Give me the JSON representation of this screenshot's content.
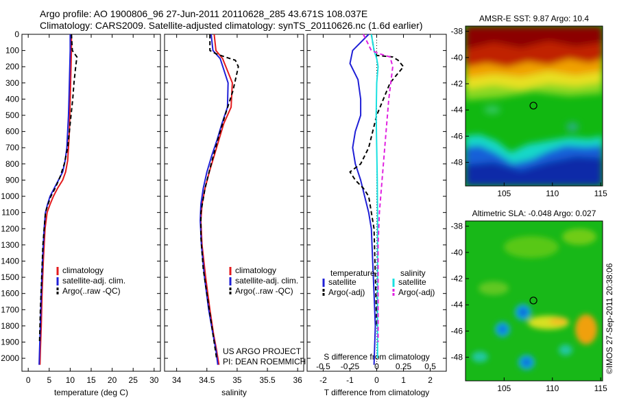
{
  "header": {
    "line1": "Argo profile: AO 1900806_96 27-Jun-2011 20110628_285 43.671S 108.037E",
    "line2": "Climatology: CARS2009. Satellite-adjusted climatology: synTS_20110626.nc (1.6d earlier)"
  },
  "footer": {
    "project": "US ARGO PROJECT",
    "pi": "PI: DEAN ROEMMICH",
    "credit": "©IMOS 27-Sep-2011 20:38:06"
  },
  "colors": {
    "climatology": "#e31a1c",
    "satellite": "#1f1fd6",
    "argo": "#000000",
    "salinity_satellite": "#18e0e0",
    "salinity_argo": "#e020e0"
  },
  "chart_data": [
    {
      "id": "temperature",
      "type": "line",
      "xlabel": "temperature (deg C)",
      "ylabel": "",
      "xlim": [
        -1.5,
        31.5
      ],
      "ylim": [
        2080,
        0
      ],
      "xticks": [
        0,
        5,
        10,
        15,
        20,
        25,
        30
      ],
      "yticks": [
        0,
        100,
        200,
        300,
        400,
        500,
        600,
        700,
        800,
        900,
        1000,
        1100,
        1200,
        1300,
        1400,
        1500,
        1600,
        1700,
        1800,
        1900,
        2000
      ],
      "legend": [
        "climatology",
        "satellite-adj. clim.",
        "Argo(..raw -QC)"
      ],
      "series": [
        {
          "name": "climatology",
          "style": "solid",
          "color": "#e31a1c",
          "x": [
            10.3,
            10.3,
            10.2,
            10.1,
            10.0,
            9.9,
            9.8,
            9.6,
            9.4,
            8.9,
            8.2,
            7.0,
            6.0,
            5.2,
            4.5,
            4.0,
            3.6,
            3.3,
            3.1,
            2.9,
            2.8
          ],
          "y": [
            0,
            100,
            200,
            300,
            400,
            500,
            600,
            700,
            780,
            850,
            900,
            950,
            1000,
            1050,
            1100,
            1200,
            1400,
            1600,
            1800,
            1950,
            2040
          ]
        },
        {
          "name": "satellite-adj. clim.",
          "style": "solid",
          "color": "#1f1fd6",
          "x": [
            10.0,
            10.0,
            9.9,
            9.8,
            9.7,
            9.6,
            9.4,
            9.2,
            8.8,
            8.2,
            7.2,
            6.2,
            5.2,
            4.6,
            4.1,
            3.8,
            3.4,
            3.1,
            2.9,
            2.7,
            2.6
          ],
          "y": [
            0,
            100,
            200,
            300,
            400,
            500,
            600,
            700,
            780,
            850,
            900,
            950,
            1000,
            1050,
            1100,
            1200,
            1400,
            1600,
            1800,
            1950,
            2040
          ]
        },
        {
          "name": "Argo(..raw -QC)",
          "style": "dashed",
          "color": "#000000",
          "x": [
            10.3,
            10.5,
            11.6,
            11.3,
            10.9,
            10.6,
            10.2,
            9.8,
            9.4,
            8.6,
            7.6,
            6.4,
            5.4,
            4.7,
            4.1,
            3.5,
            3.2,
            2.9,
            2.7
          ],
          "y": [
            0,
            100,
            140,
            200,
            300,
            400,
            500,
            600,
            700,
            800,
            880,
            950,
            1000,
            1050,
            1100,
            1300,
            1500,
            1700,
            1900
          ]
        }
      ]
    },
    {
      "id": "salinity",
      "type": "line",
      "xlabel": "salinity",
      "ylabel": "",
      "xlim": [
        33.8,
        36.1
      ],
      "ylim": [
        2080,
        0
      ],
      "xticks": [
        34,
        34.5,
        35,
        35.5,
        36
      ],
      "legend": [
        "climatology",
        "satellite-adj. clim.",
        "Argo(..raw -QC)"
      ],
      "series": [
        {
          "name": "climatology",
          "style": "solid",
          "color": "#e31a1c",
          "x": [
            34.62,
            34.65,
            34.76,
            34.92,
            34.9,
            34.78,
            34.7,
            34.62,
            34.54,
            34.47,
            34.42,
            34.4,
            34.42,
            34.48,
            34.55,
            34.61,
            34.66,
            34.7
          ],
          "y": [
            0,
            100,
            150,
            300,
            450,
            550,
            650,
            750,
            850,
            950,
            1050,
            1150,
            1300,
            1500,
            1700,
            1850,
            1950,
            2040
          ]
        },
        {
          "name": "satellite-adj. clim.",
          "style": "solid",
          "color": "#1f1fd6",
          "x": [
            34.57,
            34.6,
            34.72,
            34.85,
            34.84,
            34.75,
            34.67,
            34.58,
            34.5,
            34.44,
            34.4,
            34.39,
            34.41,
            34.46,
            34.53,
            34.6,
            34.65,
            34.68
          ],
          "y": [
            0,
            100,
            150,
            300,
            450,
            550,
            650,
            750,
            850,
            950,
            1050,
            1150,
            1300,
            1500,
            1700,
            1850,
            1950,
            2040
          ]
        },
        {
          "name": "Argo(..raw -QC)",
          "style": "dashed",
          "color": "#000000",
          "x": [
            34.55,
            34.55,
            34.65,
            34.8,
            34.97,
            35.02,
            34.93,
            34.8,
            34.68,
            34.57,
            34.47,
            34.4,
            34.4,
            34.44,
            34.52,
            34.6,
            34.66
          ],
          "y": [
            0,
            100,
            120,
            140,
            160,
            200,
            350,
            500,
            650,
            800,
            950,
            1100,
            1250,
            1450,
            1650,
            1850,
            2000
          ]
        }
      ]
    },
    {
      "id": "difference",
      "type": "line",
      "xlabel": "T difference from climatology",
      "xlabel_top": "S difference from climatology",
      "ylabel": "",
      "xlim": [
        -2.6,
        2.6
      ],
      "ylim": [
        2080,
        0
      ],
      "xticks": [
        -2,
        -1,
        0,
        1,
        2
      ],
      "x2ticks": [
        -0.5,
        -0.25,
        0,
        0.25,
        0.5
      ],
      "x2ticklabels": [
        "-0.5",
        "-0.25",
        "0",
        "0.25",
        "0.5"
      ],
      "legend_titles": [
        "temperature",
        "salinity"
      ],
      "legend": [
        "satellite",
        "Argo(-adj)",
        "satellite",
        "Argo(-adj)"
      ],
      "series": [
        {
          "name": "satellite",
          "style": "solid",
          "color": "#1f1fd6",
          "x": [
            -0.3,
            -0.6,
            -0.9,
            -1.0,
            -0.7,
            -0.6,
            -0.6,
            -0.8,
            -0.9,
            -0.8,
            -0.6,
            -0.45,
            -0.3,
            -0.2,
            -0.15,
            -0.1,
            -0.05,
            -0.1
          ],
          "y": [
            0,
            50,
            100,
            180,
            280,
            400,
            500,
            600,
            700,
            800,
            900,
            1000,
            1100,
            1200,
            1400,
            1600,
            1800,
            2040
          ]
        },
        {
          "name": "Argo(-adj)",
          "style": "dashed",
          "color": "#000000",
          "x": [
            -0.2,
            -0.1,
            0.0,
            0.6,
            0.8,
            1.0,
            0.5,
            0.0,
            -0.3,
            -0.6,
            -1.0,
            -0.8,
            -0.5,
            -0.3,
            -0.1,
            0.0
          ],
          "y": [
            0,
            100,
            130,
            140,
            160,
            200,
            300,
            500,
            700,
            800,
            850,
            900,
            950,
            1000,
            1200,
            1800
          ]
        },
        {
          "name": "satellite",
          "style": "solid",
          "color": "#18e0e0",
          "x": [
            -0.2,
            -0.1,
            0.0,
            0.05,
            0.0,
            -0.02,
            0.0,
            0.02,
            0.03,
            0.03,
            0.03,
            0.03
          ],
          "y": [
            0,
            100,
            150,
            200,
            300,
            500,
            700,
            900,
            1100,
            1300,
            1600,
            2000
          ]
        },
        {
          "name": "Argo(-adj)",
          "style": "dashed",
          "color": "#e020e0",
          "x": [
            -0.5,
            -0.2,
            0.1,
            0.5,
            0.6,
            0.45,
            0.3,
            0.2,
            0.1,
            0.05,
            0.05,
            0.05
          ],
          "y": [
            0,
            100,
            120,
            140,
            200,
            400,
            700,
            900,
            1100,
            1300,
            1600,
            1900
          ]
        }
      ]
    },
    {
      "id": "sst_map",
      "type": "heatmap",
      "title": "AMSR-E SST: 9.87  Argo: 10.4",
      "xlim": [
        101,
        115.2
      ],
      "ylim": [
        -49.8,
        -37.6
      ],
      "xticks": [
        105,
        110,
        115
      ],
      "yticks": [
        -38,
        -40,
        -42,
        -44,
        -46,
        -48
      ],
      "marker": {
        "lon": 108.037,
        "lat": -43.671
      }
    },
    {
      "id": "sla_map",
      "type": "heatmap",
      "title": "Altimetric SLA: -0.048  Argo: 0.027",
      "xlim": [
        101,
        115.2
      ],
      "ylim": [
        -49.8,
        -37.6
      ],
      "xticks": [
        105,
        110,
        115
      ],
      "yticks": [
        -38,
        -40,
        -42,
        -44,
        -46,
        -48
      ],
      "marker": {
        "lon": 108.037,
        "lat": -43.671
      }
    }
  ]
}
